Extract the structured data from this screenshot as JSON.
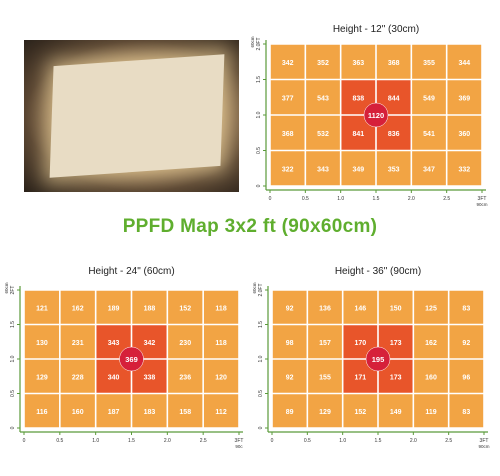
{
  "main_title": "PPFD Map 3x2 ft (90x60cm)",
  "photo": {
    "icon": "led-grow-light-panel-photo"
  },
  "colors": {
    "grid_bg": "#f2a444",
    "grid_line": "#ffffff",
    "center_zone": "#e8552a",
    "hotspot": "#d6203a",
    "axis": "#5a9a3a"
  },
  "chart_data": [
    {
      "type": "heatmap",
      "title": "Height - 12\" (30cm)",
      "x_ticks": [
        "0",
        "0.5",
        "1.0",
        "1.5",
        "2.0",
        "2.5",
        "3FT"
      ],
      "x_unit": "90cm",
      "y_ticks": [
        "0",
        "0.5",
        "1.0",
        "1.5",
        "2.0FT"
      ],
      "y_unit": "60cm",
      "rows": [
        [
          "342",
          "352",
          "363",
          "368",
          "355",
          "344"
        ],
        [
          "377",
          "543",
          "838",
          "844",
          "549",
          "369"
        ],
        [
          "368",
          "532",
          "841",
          "836",
          "541",
          "360"
        ],
        [
          "322",
          "343",
          "349",
          "353",
          "347",
          "332"
        ]
      ],
      "center_value": "1120"
    },
    {
      "type": "heatmap",
      "title": "Height - 24\" (60cm)",
      "x_ticks": [
        "0",
        "0.5",
        "1.0",
        "1.5",
        "2.0",
        "2.5",
        "3FT"
      ],
      "x_unit": "90c",
      "y_ticks": [
        "0",
        "0.5",
        "1.0",
        "1.5",
        "2FT"
      ],
      "y_unit": "60cm",
      "rows": [
        [
          "121",
          "162",
          "189",
          "188",
          "152",
          "118"
        ],
        [
          "130",
          "231",
          "343",
          "342",
          "230",
          "118"
        ],
        [
          "129",
          "228",
          "340",
          "338",
          "236",
          "120"
        ],
        [
          "116",
          "160",
          "187",
          "183",
          "158",
          "112"
        ]
      ],
      "center_value": "369"
    },
    {
      "type": "heatmap",
      "title": "Height - 36\" (90cm)",
      "x_ticks": [
        "0",
        "0.5",
        "1.0",
        "1.5",
        "2.0",
        "2.5",
        "3FT"
      ],
      "x_unit": "90cm",
      "y_ticks": [
        "0",
        "0.5",
        "1.0",
        "1.5",
        "2.0FT"
      ],
      "y_unit": "60cm",
      "rows": [
        [
          "92",
          "136",
          "146",
          "150",
          "125",
          "83"
        ],
        [
          "98",
          "157",
          "170",
          "173",
          "162",
          "92"
        ],
        [
          "92",
          "155",
          "171",
          "173",
          "160",
          "96"
        ],
        [
          "89",
          "129",
          "152",
          "149",
          "119",
          "83"
        ]
      ],
      "center_value": "195"
    }
  ]
}
